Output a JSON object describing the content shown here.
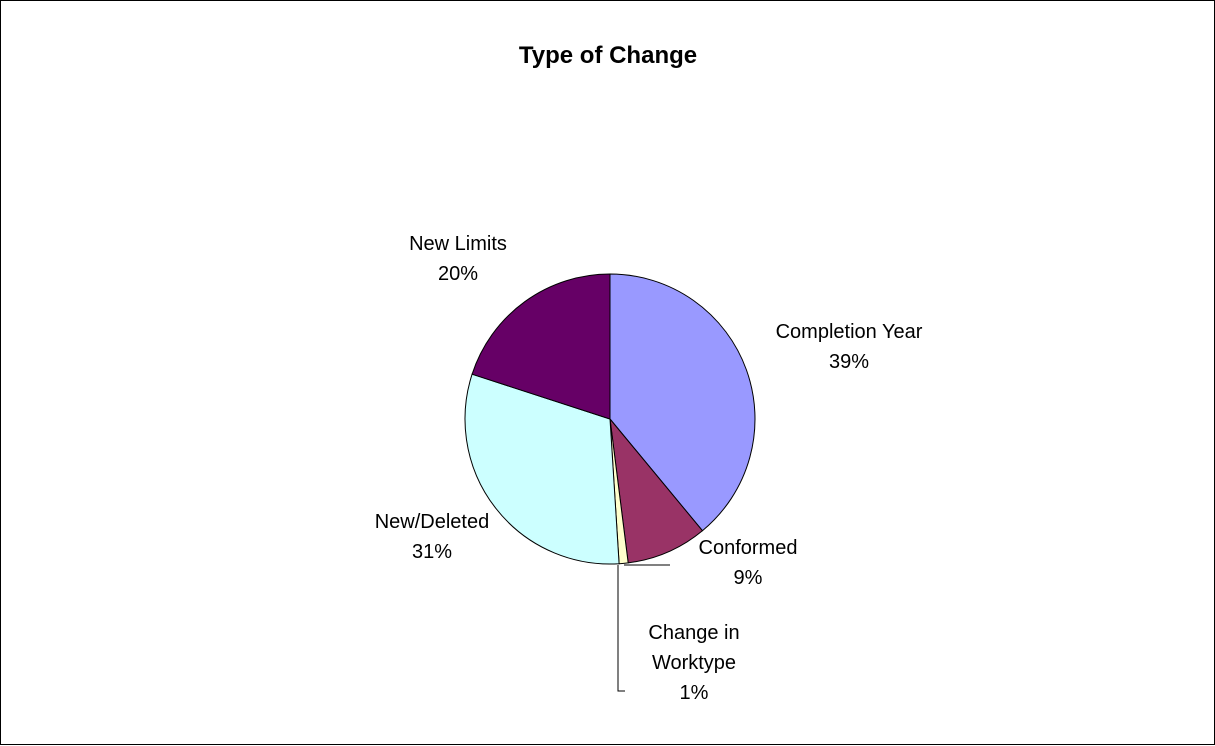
{
  "chart_data": {
    "type": "pie",
    "title": "Type of Change",
    "slices": [
      {
        "label": "Completion Year",
        "value": 39,
        "percent_label": "39%",
        "color": "#9999FF"
      },
      {
        "label": "Conformed",
        "value": 9,
        "percent_label": "9%",
        "color": "#993366"
      },
      {
        "label": "Change in Worktype",
        "label_lines": [
          "Change in",
          "Worktype"
        ],
        "value": 1,
        "percent_label": "1%",
        "color": "#FFFFCC"
      },
      {
        "label": "New/Deleted",
        "value": 31,
        "percent_label": "31%",
        "color": "#CCFFFF"
      },
      {
        "label": "New Limits",
        "value": 20,
        "percent_label": "20%",
        "color": "#660066"
      }
    ],
    "legend": "none",
    "labels": "outside"
  }
}
